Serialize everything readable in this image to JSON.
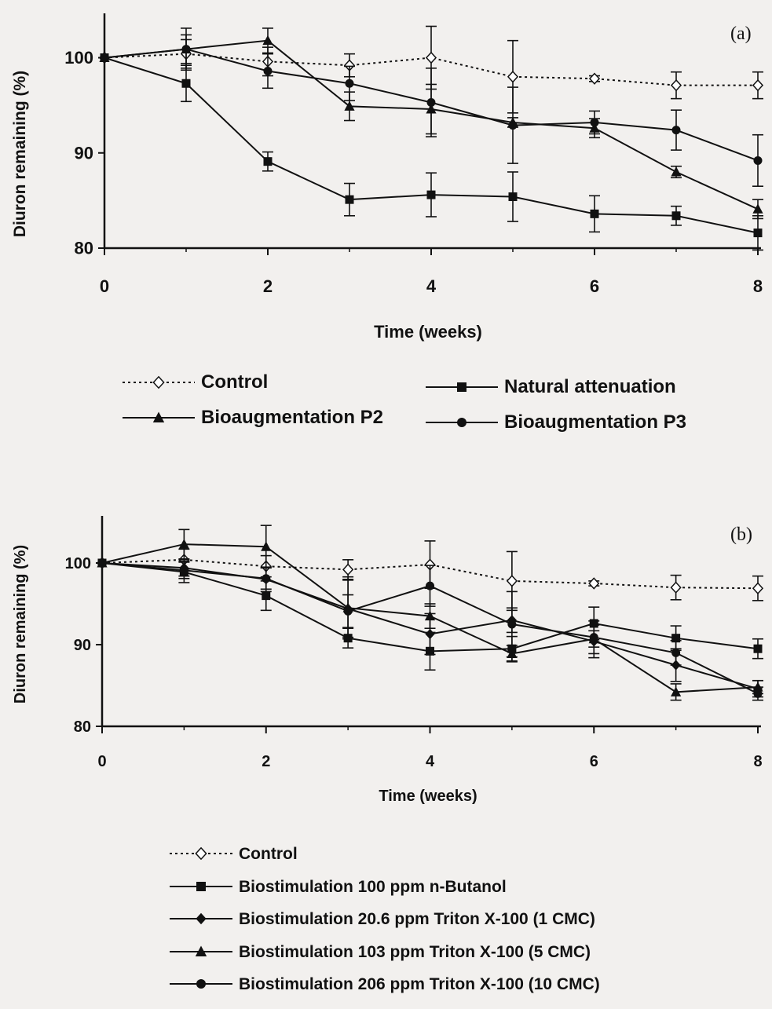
{
  "chart_data": [
    {
      "type": "line",
      "panel_label": "(a)",
      "xlabel": "Time (weeks)",
      "ylabel": "Diuron remaining (%)",
      "xlim": [
        0,
        8
      ],
      "ylim": [
        80,
        104
      ],
      "x_ticks": [
        "0",
        "2",
        "4",
        "6",
        "8"
      ],
      "y_ticks": [
        "80",
        "90",
        "100"
      ],
      "grid": false,
      "legend_position": "below",
      "series": [
        {
          "name": "Control",
          "marker": "open-diamond",
          "dashed": true,
          "color": "#111111",
          "x": [
            0,
            1,
            2,
            3,
            4,
            5,
            6,
            7,
            8
          ],
          "y": [
            100,
            100.4,
            99.6,
            99.2,
            100.0,
            98.0,
            97.8,
            97.1,
            97.1
          ],
          "err": [
            0,
            1.5,
            1.5,
            1.2,
            3.3,
            3.8,
            0.3,
            1.4,
            1.4
          ]
        },
        {
          "name": "Natural attenuation",
          "marker": "square",
          "dashed": false,
          "color": "#111111",
          "x": [
            0,
            1,
            2,
            3,
            4,
            5,
            6,
            7,
            8
          ],
          "y": [
            100,
            97.3,
            89.1,
            85.1,
            85.6,
            85.4,
            83.6,
            83.4,
            81.6
          ],
          "err": [
            0,
            1.9,
            1.0,
            1.7,
            2.3,
            2.6,
            1.9,
            1.0,
            1.8
          ]
        },
        {
          "name": "Bioaugmentation P2",
          "marker": "triangle",
          "dashed": false,
          "color": "#111111",
          "x": [
            0,
            1,
            2,
            3,
            4,
            5,
            6,
            7,
            8
          ],
          "y": [
            100,
            100.9,
            101.8,
            94.9,
            94.6,
            93.2,
            92.6,
            88.0,
            84.1
          ],
          "err": [
            0,
            2.2,
            1.3,
            1.5,
            2.6,
            0.5,
            1.0,
            0.6,
            1.0
          ]
        },
        {
          "name": "Bioaugmentation P3",
          "marker": "circle",
          "dashed": false,
          "color": "#111111",
          "x": [
            0,
            1,
            2,
            3,
            4,
            5,
            6,
            7,
            8
          ],
          "y": [
            100,
            100.9,
            98.6,
            97.3,
            95.3,
            92.9,
            93.2,
            92.4,
            89.2
          ],
          "err": [
            0,
            1.5,
            1.8,
            1.8,
            3.6,
            4.0,
            1.2,
            2.1,
            2.7
          ]
        }
      ]
    },
    {
      "type": "line",
      "panel_label": "(b)",
      "xlabel": "Time (weeks)",
      "ylabel": "Diuron remaining (%)",
      "xlim": [
        0,
        8
      ],
      "ylim": [
        80,
        105
      ],
      "x_ticks": [
        "0",
        "2",
        "4",
        "6",
        "8"
      ],
      "y_ticks": [
        "80",
        "90",
        "100"
      ],
      "grid": false,
      "legend_position": "below",
      "series": [
        {
          "name": "Control",
          "marker": "open-diamond",
          "dashed": true,
          "color": "#111111",
          "x": [
            0,
            1,
            2,
            3,
            4,
            5,
            6,
            7,
            8
          ],
          "y": [
            100,
            100.4,
            99.6,
            99.2,
            99.8,
            97.8,
            97.5,
            97.0,
            96.9
          ],
          "err": [
            0,
            1.3,
            1.3,
            1.2,
            2.9,
            3.6,
            0.3,
            1.5,
            1.5
          ]
        },
        {
          "name": "Biostimulation 100 ppm n-Butanol",
          "marker": "square",
          "dashed": false,
          "color": "#111111",
          "x": [
            0,
            1,
            2,
            3,
            4,
            5,
            6,
            7,
            8
          ],
          "y": [
            100,
            98.9,
            96.0,
            90.8,
            89.2,
            89.5,
            92.6,
            90.8,
            89.5
          ],
          "err": [
            0,
            1.3,
            1.8,
            1.2,
            2.3,
            1.5,
            2.0,
            1.5,
            1.2
          ]
        },
        {
          "name": "Biostimulation 20.6 ppm Triton X-100 (1 CMC)",
          "marker": "diamond",
          "dashed": false,
          "color": "#111111",
          "x": [
            0,
            1,
            2,
            3,
            4,
            5,
            6,
            7,
            8
          ],
          "y": [
            100,
            99.4,
            98.0,
            94.4,
            91.3,
            93.0,
            90.4,
            87.5,
            84.6
          ],
          "err": [
            0,
            1.0,
            1.5,
            3.5,
            2.5,
            1.5,
            2.0,
            2.0,
            1.0
          ]
        },
        {
          "name": "Biostimulation 103 ppm Triton X-100 (5 CMC)",
          "marker": "triangle",
          "dashed": false,
          "color": "#111111",
          "x": [
            0,
            1,
            2,
            3,
            4,
            5,
            6,
            7,
            8
          ],
          "y": [
            100,
            102.3,
            102.0,
            94.5,
            93.5,
            88.9,
            90.7,
            84.2,
            84.8
          ],
          "err": [
            0,
            1.8,
            2.6,
            3.8,
            1.5,
            1.0,
            1.0,
            1.0,
            0.8
          ]
        },
        {
          "name": "Biostimulation 206 ppm Triton X-100 (10 CMC)",
          "marker": "circle",
          "dashed": false,
          "color": "#111111",
          "x": [
            0,
            1,
            2,
            3,
            4,
            5,
            6,
            7,
            8
          ],
          "y": [
            100,
            99.1,
            98.1,
            94.1,
            97.2,
            92.5,
            90.9,
            89.0,
            84.0
          ],
          "err": [
            0,
            1.0,
            1.3,
            2.0,
            2.5,
            4.0,
            2.0,
            1.5,
            0.8
          ]
        }
      ]
    }
  ]
}
